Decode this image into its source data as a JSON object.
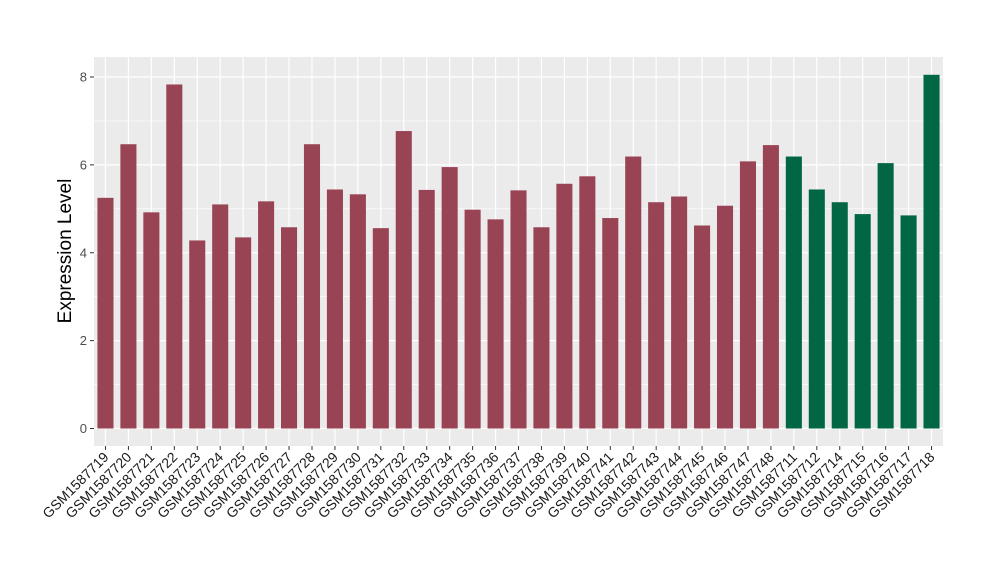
{
  "chart_data": {
    "type": "bar",
    "title": "",
    "xlabel": "",
    "ylabel": "Expression Level",
    "ylim": [
      0,
      8.3
    ],
    "yticks": [
      0,
      2,
      4,
      6,
      8
    ],
    "grid": true,
    "background_color": "#ebebeb",
    "grid_color": "#ffffff",
    "categories": [
      "GSM1587719",
      "GSM1587720",
      "GSM1587721",
      "GSM1587722",
      "GSM1587723",
      "GSM1587724",
      "GSM1587725",
      "GSM1587726",
      "GSM1587727",
      "GSM1587728",
      "GSM1587729",
      "GSM1587730",
      "GSM1587731",
      "GSM1587732",
      "GSM1587733",
      "GSM1587734",
      "GSM1587735",
      "GSM1587736",
      "GSM1587737",
      "GSM1587738",
      "GSM1587739",
      "GSM1587740",
      "GSM1587741",
      "GSM1587742",
      "GSM1587743",
      "GSM1587744",
      "GSM1587745",
      "GSM1587746",
      "GSM1587747",
      "GSM1587748",
      "GSM1587711",
      "GSM1587712",
      "GSM1587714",
      "GSM1587715",
      "GSM1587716",
      "GSM1587717",
      "GSM1587718"
    ],
    "values": [
      5.25,
      6.47,
      4.92,
      7.83,
      4.28,
      5.1,
      4.35,
      5.17,
      4.58,
      6.47,
      5.44,
      5.33,
      4.56,
      6.77,
      5.43,
      5.95,
      4.98,
      4.76,
      5.42,
      4.58,
      5.57,
      5.74,
      4.79,
      6.19,
      5.15,
      5.28,
      4.62,
      5.07,
      6.08,
      6.45,
      6.19,
      5.44,
      5.15,
      4.88,
      6.04,
      4.85,
      8.05
    ],
    "groups": [
      "a",
      "a",
      "a",
      "a",
      "a",
      "a",
      "a",
      "a",
      "a",
      "a",
      "a",
      "a",
      "a",
      "a",
      "a",
      "a",
      "a",
      "a",
      "a",
      "a",
      "a",
      "a",
      "a",
      "a",
      "a",
      "a",
      "a",
      "a",
      "a",
      "a",
      "b",
      "b",
      "b",
      "b",
      "b",
      "b",
      "b"
    ],
    "group_colors": {
      "a": "#994455",
      "b": "#006644"
    }
  }
}
